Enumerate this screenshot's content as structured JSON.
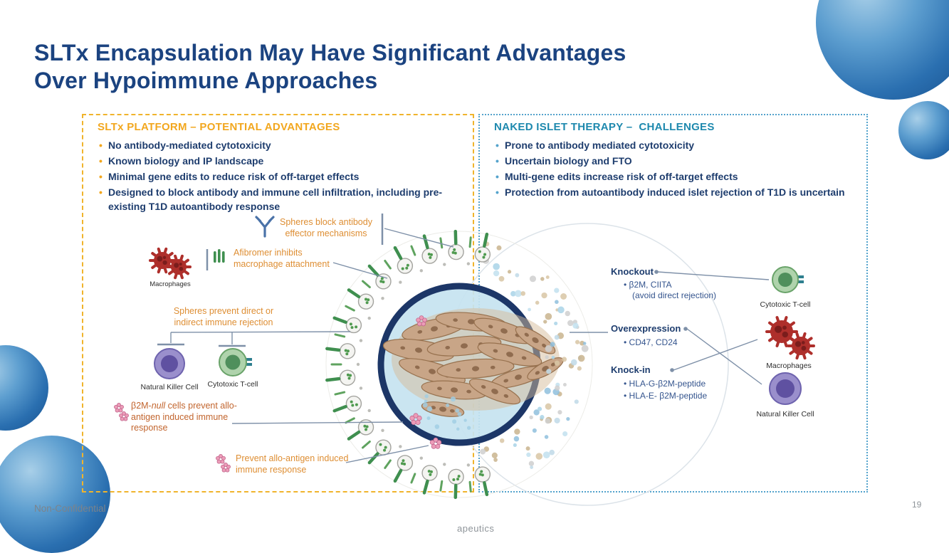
{
  "title": {
    "line1": "SLTx Encapsulation May Have Significant Advantages",
    "line2": "Over Hypoimmune Approaches"
  },
  "left_panel": {
    "header": "SLTx PLATFORM – POTENTIAL ADVANTAGES",
    "bullets": [
      "No antibody-mediated cytotoxicity",
      "Known biology and IP landscape",
      "Minimal gene edits to reduce risk of off-target effects",
      "Designed to block antibody and immune cell infiltration, including pre-existing T1D autoantibody response"
    ]
  },
  "right_panel": {
    "header": "NAKED ISLET THERAPY –  CHALLENGES",
    "bullets": [
      "Prone to antibody mediated cytotoxicity",
      "Uncertain biology and FTO",
      "Multi-gene edits increase risk of off-target effects",
      "Protection from autoantibody induced islet rejection of T1D is uncertain"
    ]
  },
  "diagram": {
    "left": {
      "antibody_note": "Spheres block antibody effector mechanisms",
      "afibromer_note": "Afibromer inhibits macrophage attachment",
      "macrophages_label": "Macrophages",
      "rejection_note": "Spheres prevent direct or indirect immune rejection",
      "nk_label": "Natural Killer Cell",
      "tcell_label": "Cytotoxic T-cell",
      "b2m_prefix": "β2M-",
      "b2m_italic": "null",
      "b2m_rest": " cells prevent allo-antigen induced immune response",
      "allo_note": "Prevent allo-antigen induced immune response"
    },
    "right": {
      "knockout": {
        "title": "Knockout",
        "line1": "β2M, CIITA",
        "line2": "(avoid direct rejection)"
      },
      "overexpression": {
        "title": "Overexpression",
        "line1": "CD47, CD24"
      },
      "knockin": {
        "title": "Knock-in",
        "line1": "HLA-G-β2M-peptide",
        "line2": "HLA-E- β2M-peptide"
      },
      "tcell_label": "Cytotoxic T-cell",
      "macrophages_label": "Macrophages",
      "nk_label": "Natural Killer Cell"
    }
  },
  "footer": {
    "left": "Non-Confidential",
    "page": "19",
    "logo_partial": "apeutics"
  },
  "colors": {
    "accent_orange": "#F2A71E",
    "accent_teal": "#1E89AE",
    "navy": "#1E3D6E",
    "ring_navy": "#1C3667"
  }
}
